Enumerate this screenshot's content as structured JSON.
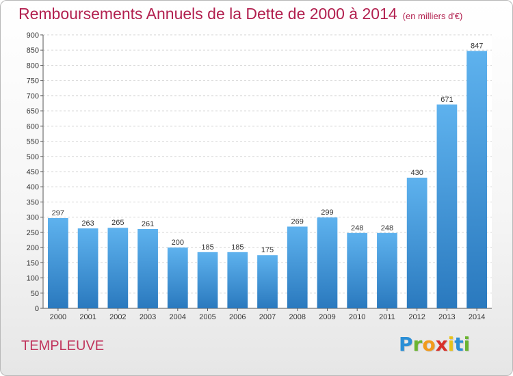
{
  "title": "Remboursements Annuels de la Dette de 2000 à 2014",
  "unit_note": "(en milliers d'€)",
  "commune": "TEMPLEUVE",
  "logo": {
    "letters": [
      "P",
      "r",
      "o",
      "x",
      "i",
      "t",
      "i"
    ],
    "colors": [
      "#2b8fd6",
      "#6ab42f",
      "#f29a1b",
      "#d8312a",
      "#e8c21a",
      "#2b8fd6",
      "#6ab42f"
    ]
  },
  "colors": {
    "bar_top": "#5eb2ee",
    "bar_bottom": "#2a79be",
    "title": "#b2204f"
  },
  "chart_data": {
    "type": "bar",
    "title": "Remboursements Annuels de la Dette de 2000 à 2014",
    "xlabel": "",
    "ylabel": "",
    "ylim": [
      0,
      900
    ],
    "yticks": [
      0,
      50,
      100,
      150,
      200,
      250,
      300,
      350,
      400,
      450,
      500,
      550,
      600,
      650,
      700,
      750,
      800,
      850,
      900
    ],
    "grid": true,
    "categories": [
      "2000",
      "2001",
      "2002",
      "2003",
      "2004",
      "2005",
      "2006",
      "2007",
      "2008",
      "2009",
      "2010",
      "2011",
      "2012",
      "2013",
      "2014"
    ],
    "values": [
      297,
      263,
      265,
      261,
      200,
      185,
      185,
      175,
      269,
      299,
      248,
      248,
      430,
      671,
      847
    ]
  }
}
